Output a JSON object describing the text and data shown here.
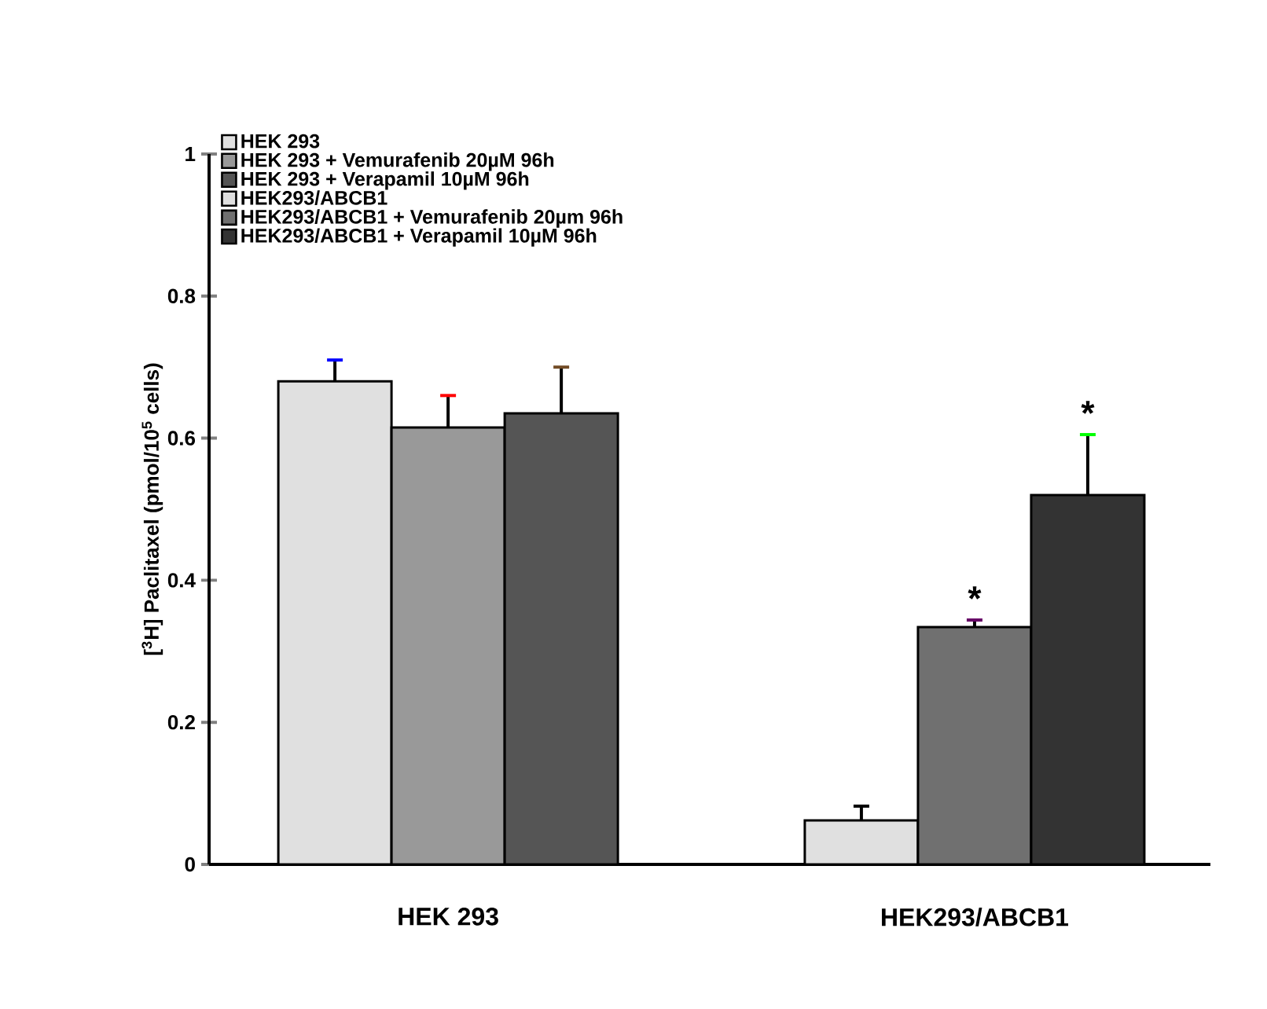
{
  "chart_data": {
    "type": "bar",
    "ylabel": "[$^{3}$H] Paclitaxel (pmol/10$^{5}$ cells)",
    "categories": [
      "HEK 293",
      "HEK293/ABCB1"
    ],
    "series": [
      {
        "name": "HEK 293",
        "color": "#e0e0e0",
        "values": [
          0.68,
          null
        ],
        "errors": [
          0.03,
          null
        ]
      },
      {
        "name": "HEK 293 + Vemurafenib 20µM 96h",
        "color": "#999999",
        "values": [
          0.615,
          null
        ],
        "errors": [
          0.045,
          null
        ]
      },
      {
        "name": "HEK 293 + Verapamil 10µM 96h",
        "color": "#555555",
        "values": [
          0.635,
          null
        ],
        "errors": [
          0.065,
          null
        ]
      },
      {
        "name": "HEK293/ABCB1",
        "color": "#e0e0e0",
        "values": [
          null,
          0.062
        ],
        "errors": [
          null,
          0.02
        ]
      },
      {
        "name": "HEK293/ABCB1 + Vemurafenib 20µm 96h",
        "color": "#707070",
        "values": [
          null,
          0.334
        ],
        "errors": [
          null,
          0.01
        ]
      },
      {
        "name": "HEK293/ABCB1 + Verapamil 10µM 96h",
        "color": "#333333",
        "values": [
          null,
          0.52
        ],
        "errors": [
          null,
          0.085
        ]
      }
    ],
    "ylim": [
      0,
      1
    ],
    "yticks": [
      0,
      0.2,
      0.4,
      0.6,
      0.8,
      1
    ],
    "annotations": [
      "*",
      "*"
    ],
    "grid": false,
    "legend": "top left"
  }
}
